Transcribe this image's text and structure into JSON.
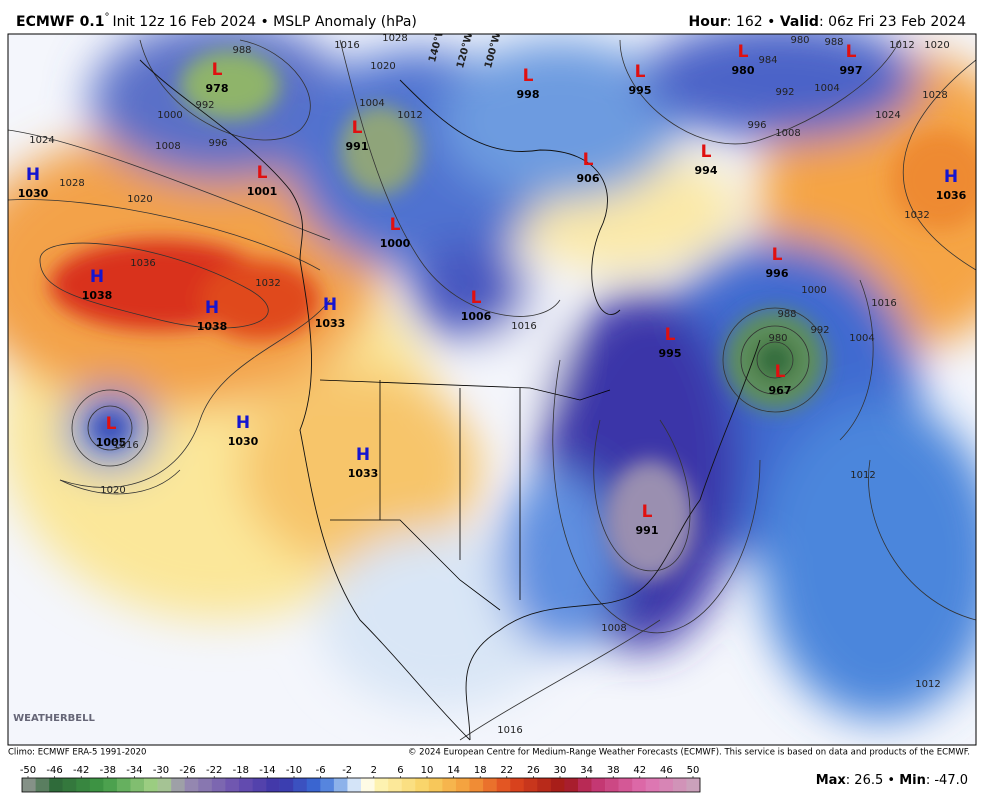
{
  "header": {
    "model": "ECMWF 0.1",
    "degree": "°",
    "init": "Init 12z 16 Feb 2024 • MSLP Anomaly (hPa)",
    "hour_label": "Hour",
    "hour": ": 162 • ",
    "valid_label": "Valid",
    "valid": ": 06z Fri 23 Feb 2024"
  },
  "centers": [
    {
      "symbol": "L",
      "value": 978
    },
    {
      "symbol": "L",
      "value": 991
    },
    {
      "symbol": "L",
      "value": 1001
    },
    {
      "symbol": "L",
      "value": 1000
    },
    {
      "symbol": "L",
      "value": 998
    },
    {
      "symbol": "L",
      "value": 995
    },
    {
      "symbol": "L",
      "value": 980
    },
    {
      "symbol": "L",
      "value": 997
    },
    {
      "symbol": "L",
      "value": 906
    },
    {
      "symbol": "L",
      "value": 994
    },
    {
      "symbol": "H",
      "value": 1030
    },
    {
      "symbol": "H",
      "value": 1038
    },
    {
      "symbol": "H",
      "value": 1038
    },
    {
      "symbol": "H",
      "value": 1033
    },
    {
      "symbol": "L",
      "value": 1006
    },
    {
      "symbol": "L",
      "value": 995
    },
    {
      "symbol": "L",
      "value": 996
    },
    {
      "symbol": "L",
      "value": 967
    },
    {
      "symbol": "H",
      "value": 1036
    },
    {
      "symbol": "L",
      "value": 1005
    },
    {
      "symbol": "H",
      "value": 1030
    },
    {
      "symbol": "H",
      "value": 1033
    },
    {
      "symbol": "L",
      "value": 991
    }
  ],
  "contour_labels": [
    988,
    992,
    996,
    1000,
    1008,
    1024,
    1028,
    1020,
    1036,
    1032,
    1028,
    1016,
    1020,
    1004,
    1012,
    1016,
    1016,
    1020,
    1008,
    1012,
    1016,
    1004,
    1000,
    992,
    988,
    980,
    1020,
    1028,
    1024,
    1032,
    1004,
    1008,
    996,
    992,
    984,
    980,
    988,
    1012,
    1012,
    1016
  ],
  "longitudes": [
    "140°W",
    "120°W",
    "100°W"
  ],
  "colorbar": {
    "ticks": [
      -50,
      -46,
      -42,
      -38,
      -34,
      -30,
      -26,
      -22,
      -18,
      -14,
      -10,
      -6,
      -2,
      2,
      6,
      10,
      14,
      18,
      22,
      26,
      30,
      34,
      38,
      42,
      46,
      50
    ]
  },
  "footer": {
    "climo": "Climo: ECMWF ERA-5 1991-2020",
    "copyright": "© 2024 European Centre for Medium-Range Weather Forecasts (ECMWF). This service is based on data and products of the ECMWF.",
    "logo": "WEATHERBELL",
    "max_label": "Max",
    "max": ": 26.5 • ",
    "min_label": "Min",
    "min": ": -47.0"
  }
}
